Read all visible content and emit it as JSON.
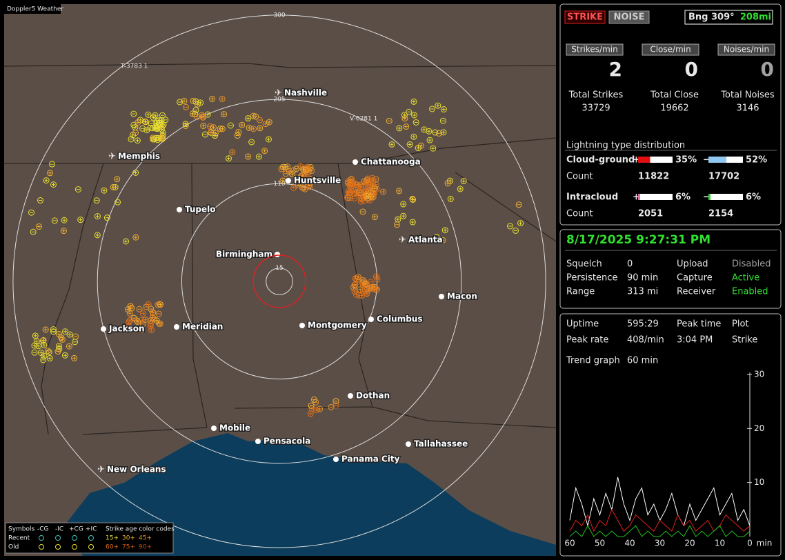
{
  "app_title": "Doppler5 Weather",
  "map": {
    "range_rings": [
      15,
      110,
      205,
      300
    ],
    "markers": [
      "T-3783 1",
      "V-6281 1"
    ],
    "cities": [
      {
        "name": "Nashville",
        "icon": "plane"
      },
      {
        "name": "Memphis",
        "icon": "plane"
      },
      {
        "name": "Chattanooga",
        "icon": "dot"
      },
      {
        "name": "Huntsville",
        "icon": "dot"
      },
      {
        "name": "Tupelo",
        "icon": "dot"
      },
      {
        "name": "Atlanta",
        "icon": "plane"
      },
      {
        "name": "Birmingham",
        "icon": "dot"
      },
      {
        "name": "Macon",
        "icon": "dot"
      },
      {
        "name": "Jackson",
        "icon": "dot"
      },
      {
        "name": "Meridian",
        "icon": "dot"
      },
      {
        "name": "Montgomery",
        "icon": "dot"
      },
      {
        "name": "Columbus",
        "icon": "dot"
      },
      {
        "name": "Dothan",
        "icon": "dot"
      },
      {
        "name": "Mobile",
        "icon": "dot"
      },
      {
        "name": "Pensacola",
        "icon": "dot"
      },
      {
        "name": "Tallahassee",
        "icon": "dot"
      },
      {
        "name": "Panama City",
        "icon": "dot"
      },
      {
        "name": "New Orleans",
        "icon": "plane"
      }
    ],
    "legend": {
      "symbols_label": "Symbols",
      "types": [
        "-CG",
        "-IC",
        "+CG",
        "+IC"
      ],
      "age_title": "Strike age color codes",
      "rows": [
        "Recent",
        "Old"
      ],
      "ages": [
        [
          "15+",
          "30+",
          "45+"
        ],
        [
          "60+",
          "75+",
          "90+"
        ]
      ]
    }
  },
  "status": {
    "buttons": [
      "STRIKE",
      "NOISE"
    ],
    "bearing": "Bng 309°",
    "distance": "208mi"
  },
  "rates": [
    {
      "label": "Strikes/min",
      "value": 2
    },
    {
      "label": "Close/min",
      "value": 0
    },
    {
      "label": "Noises/min",
      "value": 0
    }
  ],
  "totals": [
    {
      "label": "Total Strikes",
      "value": 33729
    },
    {
      "label": "Total Close",
      "value": 19662
    },
    {
      "label": "Total Noises",
      "value": 3146
    }
  ],
  "distribution": {
    "title": "Lightning type distribution",
    "plus_sign": "+",
    "minus_sign": "−",
    "count_label": "Count",
    "rows": [
      {
        "label": "Cloud-ground",
        "plus": {
          "value": 35,
          "label": "35%",
          "count": 11822,
          "color": "#e01010"
        },
        "minus": {
          "value": 52,
          "label": "52%",
          "count": 17702,
          "color": "#90c8f0"
        }
      },
      {
        "label": "Intracloud",
        "plus": {
          "value": 6,
          "label": "6%",
          "count": 2051,
          "color": "#e070a0"
        },
        "minus": {
          "value": 6,
          "label": "6%",
          "count": 2154,
          "color": "#30d030"
        }
      }
    ]
  },
  "clock": "8/17/2025 9:27:31 PM",
  "settings": [
    [
      "Squelch",
      "0",
      "Upload",
      "Disabled"
    ],
    [
      "Persistence",
      "90 min",
      "Capture",
      "Active"
    ],
    [
      "Range",
      "313 mi",
      "Receiver",
      "Enabled"
    ]
  ],
  "stats": [
    [
      "Uptime",
      "595:29",
      "Peak time",
      "Plot"
    ],
    [
      "Peak rate",
      "408/min",
      "3:04 PM",
      "Strike"
    ],
    [
      "Trend graph",
      "60 min"
    ]
  ],
  "trend": {
    "ylim": [
      0,
      30
    ],
    "yticks": [
      10,
      20,
      30
    ],
    "xlim": [
      60,
      0
    ],
    "xticks": [
      60,
      50,
      40,
      30,
      20,
      10,
      0
    ],
    "x_unit": "min",
    "x": [
      60,
      58,
      56,
      54,
      52,
      50,
      48,
      46,
      44,
      42,
      40,
      38,
      36,
      34,
      32,
      30,
      28,
      26,
      24,
      22,
      20,
      18,
      16,
      14,
      12,
      10,
      8,
      6,
      4,
      2,
      0
    ],
    "series": [
      {
        "color": "#ffffff",
        "values": [
          3,
          9,
          6,
          2,
          7,
          4,
          8,
          5,
          11,
          6,
          3,
          7,
          9,
          4,
          6,
          3,
          5,
          8,
          4,
          2,
          6,
          3,
          5,
          7,
          9,
          4,
          6,
          8,
          3,
          5,
          2
        ]
      },
      {
        "color": "#e02020",
        "values": [
          1,
          3,
          2,
          4,
          1,
          3,
          2,
          5,
          3,
          1,
          2,
          4,
          3,
          2,
          1,
          3,
          2,
          1,
          4,
          2,
          3,
          1,
          2,
          3,
          1,
          2,
          4,
          3,
          2,
          1,
          2
        ]
      },
      {
        "color": "#20c020",
        "values": [
          0,
          1,
          0,
          2,
          0,
          1,
          0,
          1,
          0,
          0,
          1,
          2,
          0,
          1,
          0,
          0,
          1,
          0,
          1,
          0,
          2,
          0,
          1,
          0,
          1,
          2,
          0,
          1,
          0,
          0,
          1
        ]
      }
    ]
  }
}
